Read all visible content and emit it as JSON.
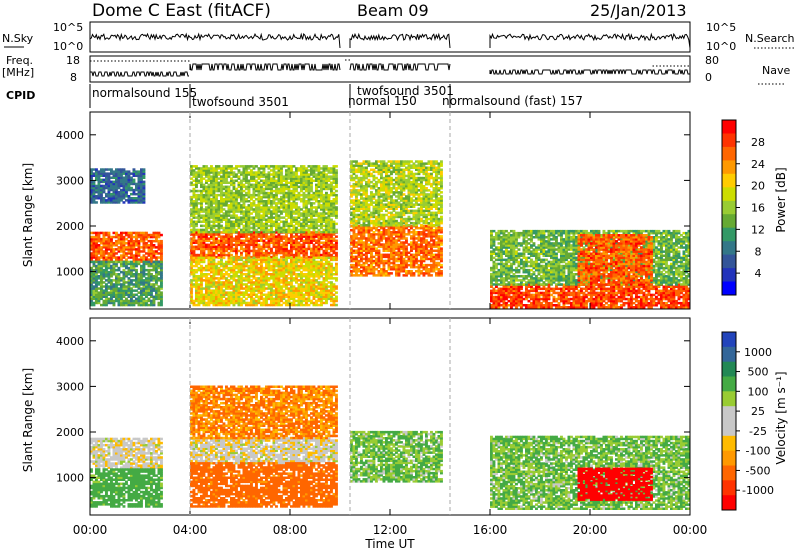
{
  "header": {
    "title": "Dome C East (fitACF)",
    "beam": "Beam 09",
    "date": "25/Jan/2013"
  },
  "panels": {
    "nsky_label": "N.Sky",
    "nsky_ticks": [
      "10^5",
      "10^0"
    ],
    "nsearch_ticks": [
      "10^5",
      "10^0"
    ],
    "nsearch_label": "N.Search",
    "freq_label": "Freq.",
    "freq_unit": "[MHz]",
    "freq_ticks": [
      "18",
      "8"
    ],
    "nave_ticks": [
      "80",
      "0"
    ],
    "nave_label": "Nave",
    "cpid_label": "CPID"
  },
  "cpid_segments": [
    {
      "label": "normalsound 155",
      "start_h": 0.0
    },
    {
      "label": "twofsound 3501",
      "start_h": 4.0
    },
    {
      "label": "normal 150",
      "start_h": 10.4
    },
    {
      "label": "twofsound 3501",
      "start_h": 10.4
    },
    {
      "label": "normalsound (fast) 157",
      "start_h": 14.4
    }
  ],
  "axis": {
    "ylabel": "Slant Range [km]",
    "yticks": [
      "1000",
      "2000",
      "3000",
      "4000"
    ],
    "xticks": [
      "00:00",
      "04:00",
      "08:00",
      "12:00",
      "16:00",
      "20:00",
      "00:00"
    ],
    "xlabel": "Time UT"
  },
  "colorbars": {
    "power": {
      "label": "Power [dB]",
      "ticks": [
        "28",
        "24",
        "20",
        "16",
        "12",
        "8",
        "4"
      ],
      "colors": [
        "#ff0000",
        "#ff3300",
        "#ff6600",
        "#ff9900",
        "#ffcc00",
        "#ccdd00",
        "#99cc33",
        "#66aa33",
        "#339966",
        "#337788",
        "#335599",
        "#2233bb",
        "#0000ff"
      ]
    },
    "velocity": {
      "label": "Velocity [m s⁻¹]",
      "ticks": [
        "1000",
        "500",
        "100",
        "25",
        "-25",
        "-100",
        "-500",
        "-1000"
      ],
      "colors": [
        "#2244bb",
        "#336699",
        "#228855",
        "#44aa44",
        "#99cc33",
        "#c8c8c8",
        "#c8c8c8",
        "#ffbb00",
        "#ff9900",
        "#ff6600",
        "#ff3300",
        "#ff0000"
      ]
    }
  },
  "chart_data": {
    "type": "heatmap",
    "title": "Dome C East (fitACF)",
    "x_range_h": [
      0,
      24
    ],
    "y_range_km": [
      180,
      4500
    ],
    "data_gap_h": [
      [
        10.0,
        10.4
      ],
      [
        14.4,
        16.0
      ]
    ],
    "power_regions": [
      {
        "t0": 0.0,
        "t1": 2.9,
        "r0": 1200,
        "r1": 1850,
        "db": 26
      },
      {
        "t0": 0.0,
        "t1": 2.9,
        "r0": 250,
        "r1": 1200,
        "db": 12
      },
      {
        "t0": 0.0,
        "t1": 2.2,
        "r0": 2500,
        "r1": 3250,
        "db": 8
      },
      {
        "t0": 4.0,
        "t1": 9.8,
        "r0": 1300,
        "r1": 1850,
        "db": 26
      },
      {
        "t0": 4.0,
        "t1": 9.8,
        "r0": 250,
        "r1": 1300,
        "db": 20
      },
      {
        "t0": 4.0,
        "t1": 9.8,
        "r0": 1850,
        "r1": 3300,
        "db": 16
      },
      {
        "t0": 10.4,
        "t1": 14.0,
        "r0": 900,
        "r1": 2000,
        "db": 25
      },
      {
        "t0": 10.4,
        "t1": 14.0,
        "r0": 2000,
        "r1": 3400,
        "db": 17
      },
      {
        "t0": 16.0,
        "t1": 24.0,
        "r0": 200,
        "r1": 700,
        "db": 27
      },
      {
        "t0": 16.0,
        "t1": 24.0,
        "r0": 700,
        "r1": 1900,
        "db": 14
      },
      {
        "t0": 19.5,
        "t1": 22.5,
        "r0": 700,
        "r1": 1800,
        "db": 26
      }
    ],
    "velocity_regions": [
      {
        "t0": 0.0,
        "t1": 2.9,
        "r0": 1200,
        "r1": 1850,
        "v": 0
      },
      {
        "t0": 0.0,
        "t1": 2.9,
        "r0": 350,
        "r1": 1200,
        "v": 150
      },
      {
        "t0": 4.0,
        "t1": 9.8,
        "r0": 1300,
        "r1": 1850,
        "v": 0
      },
      {
        "t0": 4.0,
        "t1": 9.8,
        "r0": 350,
        "r1": 1300,
        "v": -150
      },
      {
        "t0": 4.0,
        "t1": 9.8,
        "r0": 1850,
        "r1": 3000,
        "v": -100
      },
      {
        "t0": 10.4,
        "t1": 14.0,
        "r0": 900,
        "r1": 2000,
        "v": 100
      },
      {
        "t0": 16.0,
        "t1": 24.0,
        "r0": 300,
        "r1": 1900,
        "v": 100
      },
      {
        "t0": 19.5,
        "t1": 22.5,
        "r0": 500,
        "r1": 1200,
        "v": -700
      }
    ]
  }
}
